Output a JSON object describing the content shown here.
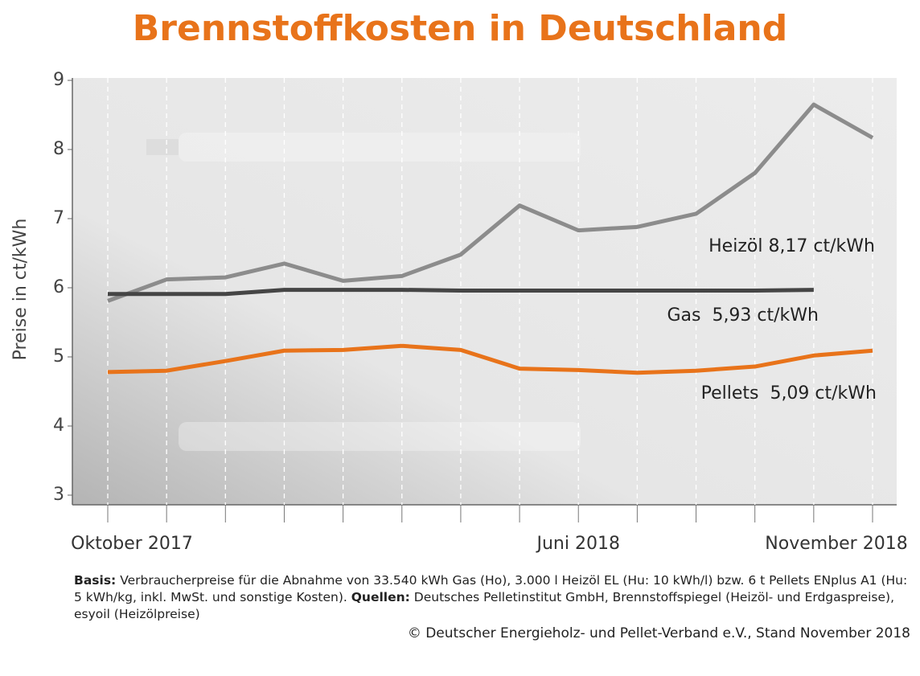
{
  "chart_data": {
    "type": "line",
    "title": "Brennstoffkosten in Deutschland",
    "y_label": "Preise in ct/kWh",
    "categories": [
      "Oktober 2017",
      null,
      null,
      null,
      null,
      null,
      null,
      null,
      "Juni 2018",
      null,
      null,
      null,
      null,
      "November 2018"
    ],
    "series": [
      {
        "name": "Heizöl",
        "color": "#8c8c8c",
        "values": [
          5.81,
          6.12,
          6.15,
          6.35,
          6.1,
          6.17,
          6.48,
          7.19,
          6.83,
          6.88,
          7.07,
          7.66,
          8.65,
          8.17
        ]
      },
      {
        "name": "Gas",
        "color": "#454545",
        "values": [
          5.91,
          5.91,
          5.91,
          5.97,
          5.97,
          5.97,
          5.96,
          5.96,
          5.96,
          5.96,
          5.96,
          5.96,
          5.97,
          null
        ]
      },
      {
        "name": "Pellets",
        "color": "#e8731a",
        "values": [
          4.78,
          4.8,
          4.94,
          5.09,
          5.1,
          5.16,
          5.1,
          4.83,
          4.81,
          4.77,
          4.8,
          4.86,
          5.02,
          5.09
        ]
      }
    ],
    "annotations": [
      "Heizöl 8,17 ct/kWh",
      "Gas  5,93 ct/kWh",
      "Pellets  5,09 ct/kWh"
    ],
    "ylim": [
      3,
      9
    ],
    "yticks": [
      3,
      4,
      5,
      6,
      7,
      8,
      9
    ],
    "footnote": {
      "basis_label": "Basis:",
      "basis_text": "Verbraucherpreise für die Abnahme von 33.540 kWh Gas (Ho), 3.000 l Heizöl EL (Hu: 10 kWh/l) bzw. 6 t Pellets ENplus A1 (Hu: 5 kWh/kg, inkl. MwSt. und sonstige Kosten).",
      "sources_label": "Quellen:",
      "sources_text": "Deutsches Pelletinstitut GmbH, Brennstoffspiegel (Heizöl- und Erdgaspreise), esyoil (Heizölpreise)"
    },
    "copyright": "© Deutscher Energieholz- und Pellet-Verband e.V., Stand November 2018"
  }
}
